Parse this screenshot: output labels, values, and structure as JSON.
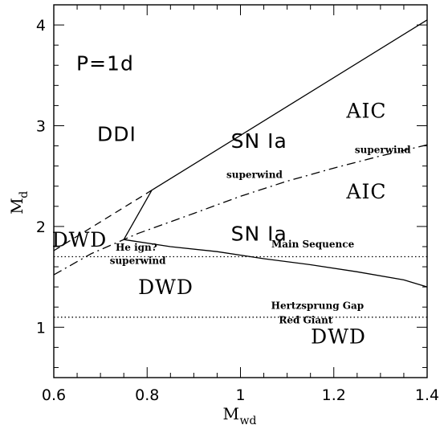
{
  "chart_data": {
    "type": "line",
    "xlabel": "M",
    "xlabel_sub": "wd",
    "ylabel": "M",
    "ylabel_sub": "d",
    "xlim": [
      0.6,
      1.4
    ],
    "ylim": [
      0.5,
      4.2
    ],
    "x_ticks": [
      {
        "value": 0.6,
        "label": "0.6"
      },
      {
        "value": 0.8,
        "label": "0.8"
      },
      {
        "value": 1.0,
        "label": "1"
      },
      {
        "value": 1.2,
        "label": "1.2"
      },
      {
        "value": 1.4,
        "label": "1.4"
      }
    ],
    "y_ticks": [
      {
        "value": 1,
        "label": "1"
      },
      {
        "value": 2,
        "label": "2"
      },
      {
        "value": 3,
        "label": "3"
      },
      {
        "value": 4,
        "label": "4"
      }
    ],
    "x_minor_step": 0.05,
    "y_minor_step": 0.2,
    "series": [
      {
        "style": "solid",
        "x": [
          0.81,
          1.4
        ],
        "y": [
          2.36,
          4.05
        ]
      },
      {
        "style": "solid",
        "x": [
          0.75,
          0.81
        ],
        "y": [
          1.87,
          2.36
        ]
      },
      {
        "style": "solid",
        "x": [
          0.75,
          0.85,
          0.95,
          1.05,
          1.15,
          1.25,
          1.35,
          1.4
        ],
        "y": [
          1.87,
          1.8,
          1.75,
          1.68,
          1.62,
          1.55,
          1.47,
          1.4
        ]
      },
      {
        "style": "dashed",
        "x": [
          0.6,
          0.81
        ],
        "y": [
          1.76,
          2.36
        ]
      },
      {
        "style": "dashdot",
        "x": [
          0.6,
          0.68,
          0.78,
          0.9,
          1.0,
          1.1,
          1.2,
          1.3,
          1.4
        ],
        "y": [
          1.52,
          1.73,
          1.93,
          2.13,
          2.3,
          2.45,
          2.58,
          2.7,
          2.81
        ]
      },
      {
        "style": "dotted",
        "x": [
          0.6,
          1.4
        ],
        "y": [
          1.7,
          1.7
        ]
      },
      {
        "style": "dotted",
        "x": [
          0.6,
          1.4
        ],
        "y": [
          1.1,
          1.1
        ]
      }
    ],
    "annotations": [
      {
        "text": "P=1d",
        "x": 0.71,
        "y": 3.55,
        "size": "big",
        "font": "sans"
      },
      {
        "text": "DDI",
        "x": 0.735,
        "y": 2.85,
        "size": "big",
        "font": "sans"
      },
      {
        "text": "SN Ia",
        "x": 1.04,
        "y": 2.78,
        "size": "big",
        "font": "sans"
      },
      {
        "text": "SN Ia",
        "x": 1.04,
        "y": 1.86,
        "size": "big",
        "font": "sans"
      },
      {
        "text": "AIC",
        "x": 1.27,
        "y": 3.08,
        "size": "big",
        "font": "serif"
      },
      {
        "text": "AIC",
        "x": 1.27,
        "y": 2.28,
        "size": "big",
        "font": "serif"
      },
      {
        "text": "DWD",
        "x": 0.655,
        "y": 1.8,
        "size": "big",
        "font": "serif"
      },
      {
        "text": "DWD",
        "x": 0.84,
        "y": 1.33,
        "size": "big",
        "font": "serif"
      },
      {
        "text": "DWD",
        "x": 1.21,
        "y": 0.84,
        "size": "big",
        "font": "serif"
      },
      {
        "text": "superwind",
        "x": 1.305,
        "y": 2.73,
        "size": "small"
      },
      {
        "text": "superwind",
        "x": 1.03,
        "y": 2.48,
        "size": "small"
      },
      {
        "text": "superwind",
        "x": 0.78,
        "y": 1.63,
        "size": "small"
      },
      {
        "text": "He ign?",
        "x": 0.777,
        "y": 1.76,
        "size": "small"
      },
      {
        "text": "Main Sequence",
        "x": 1.155,
        "y": 1.79,
        "size": "small"
      },
      {
        "text": "Hertzsprung Gap",
        "x": 1.165,
        "y": 1.18,
        "size": "small"
      },
      {
        "text": "Red Giant",
        "x": 1.14,
        "y": 1.04,
        "size": "small"
      }
    ]
  }
}
